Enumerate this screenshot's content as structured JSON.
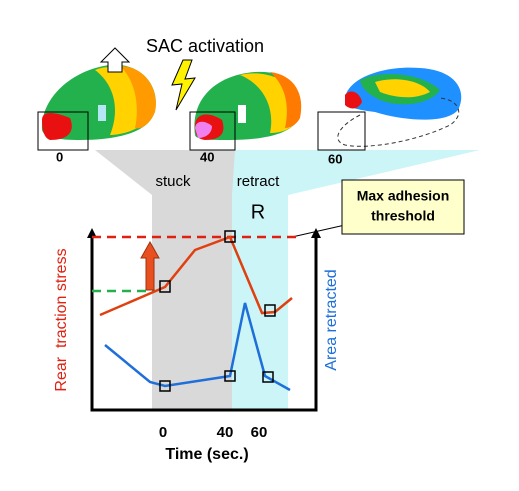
{
  "header": {
    "title": "SAC activation"
  },
  "cells": [
    {
      "label": "0"
    },
    {
      "label": "40"
    },
    {
      "label": "60"
    }
  ],
  "phases": [
    "stuck",
    "retract"
  ],
  "region_label": "R",
  "callout": [
    "Max adhesion",
    "threshold"
  ],
  "axes": {
    "y_left": "Rear  traction stress",
    "y_right": "Area retracted",
    "x_ticks": [
      "0",
      "40",
      "60"
    ],
    "x_label": "Time (sec.)"
  }
}
